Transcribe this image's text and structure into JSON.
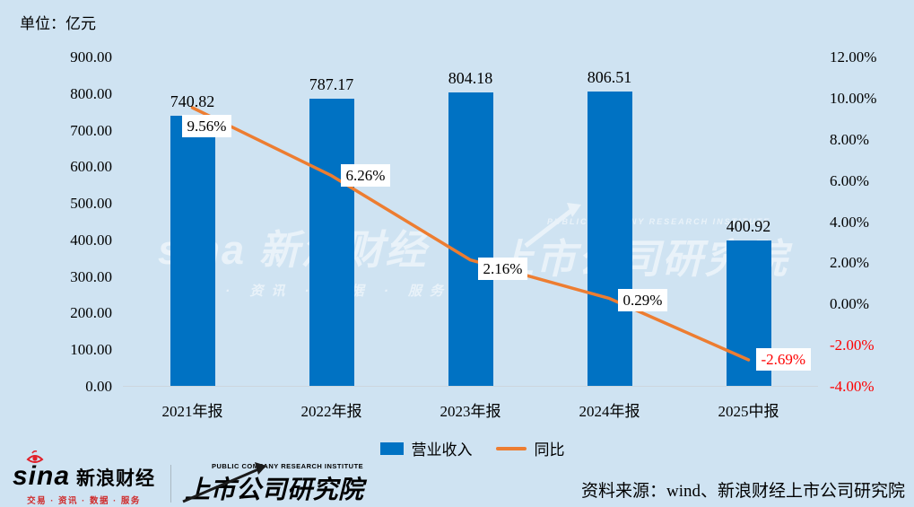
{
  "unit_label": "单位：亿元",
  "chart_data": {
    "type": "bar",
    "title": "",
    "categories": [
      "2021年报",
      "2022年报",
      "2023年报",
      "2024年报",
      "2025中报"
    ],
    "series": [
      {
        "name": "营业收入",
        "type": "bar",
        "axis": "left",
        "values": [
          740.82,
          787.17,
          804.18,
          806.51,
          400.92
        ],
        "labels": [
          "740.82",
          "787.17",
          "804.18",
          "806.51",
          "400.92"
        ],
        "color": "#0072c3"
      },
      {
        "name": "同比",
        "type": "line",
        "axis": "right",
        "values": [
          9.56,
          6.26,
          2.16,
          0.29,
          -2.69
        ],
        "labels": [
          "9.56%",
          "6.26%",
          "2.16%",
          "0.29%",
          "-2.69%"
        ],
        "color": "#ed7d31"
      }
    ],
    "left_axis": {
      "unit": "亿元",
      "min": 0,
      "max": 900,
      "ticks": [
        "900.00",
        "800.00",
        "700.00",
        "600.00",
        "500.00",
        "400.00",
        "300.00",
        "200.00",
        "100.00",
        "0.00"
      ]
    },
    "right_axis": {
      "min": -4,
      "max": 12,
      "ticks": [
        "12.00%",
        "10.00%",
        "8.00%",
        "6.00%",
        "4.00%",
        "2.00%",
        "0.00%",
        "-2.00%",
        "-4.00%"
      ],
      "negative_color": "#fe0000"
    },
    "grid": "off",
    "legend_position": "bottom"
  },
  "legend": {
    "items": [
      {
        "label": "营业收入",
        "color": "#0072c3",
        "swatch": "bar"
      },
      {
        "label": "同比",
        "color": "#ed7d31",
        "swatch": "line"
      }
    ]
  },
  "watermark": {
    "sina_logo": "sina",
    "sina_name": "新浪财经",
    "sina_sub": "交易 · 资讯 · 数据 · 服务",
    "institute_en": "PUBLIC COMPANY RESEARCH INSTITUTE",
    "institute_cn": "上市公司研究院"
  },
  "footer": {
    "sina_logo": "sina",
    "sina_name": "新浪财经",
    "sina_sub": "交易 · 资讯 · 数据 · 服务",
    "institute_en": "PUBLIC COMPANY RESEARCH INSTITUTE",
    "institute_cn": "上市公司研究院",
    "source": "资料来源：wind、新浪财经上市公司研究院"
  },
  "colors": {
    "background": "#cfe3f2",
    "bar": "#0072c3",
    "line": "#ed7d31",
    "negative": "#fe0000",
    "axis_line": "#ccd6dd",
    "label_box": "#ffffff",
    "text": "#000000",
    "sina_red": "#cf2b2b"
  }
}
